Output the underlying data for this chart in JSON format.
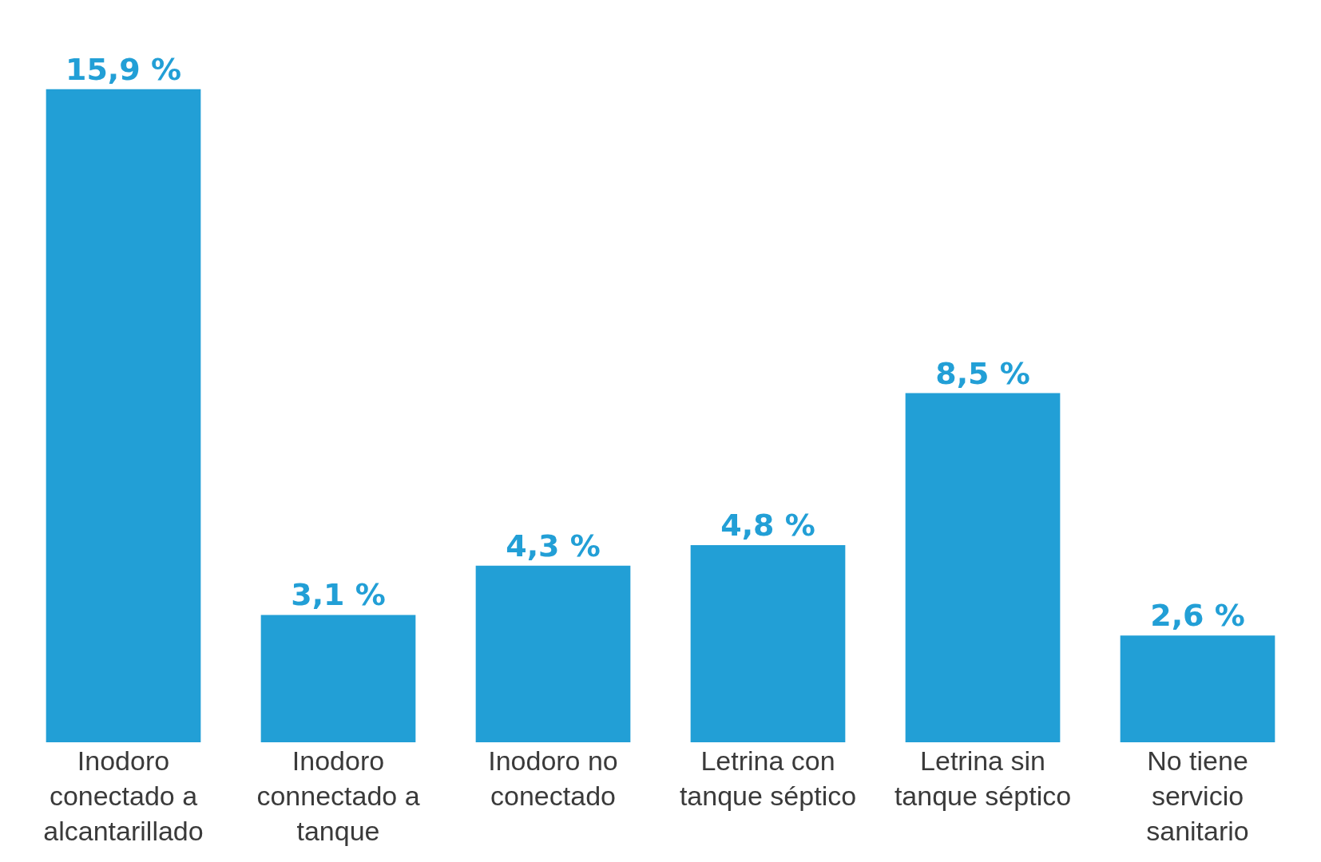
{
  "chart_data": {
    "type": "bar",
    "categories": [
      "Inodoro conectado a alcantarillado",
      "Inodoro connectado a tanque",
      "Inodoro no conectado",
      "Letrina con tanque séptico",
      "Letrina sin tanque séptico",
      "No tiene servicio sanitario"
    ],
    "values": [
      15.9,
      3.1,
      4.3,
      4.8,
      8.5,
      2.6
    ],
    "value_labels": [
      "15,9 %",
      "3,1 %",
      "4,3 %",
      "4,8 %",
      "8,5 %",
      "2,6 %"
    ],
    "color": "#229fd6",
    "grid": false
  }
}
